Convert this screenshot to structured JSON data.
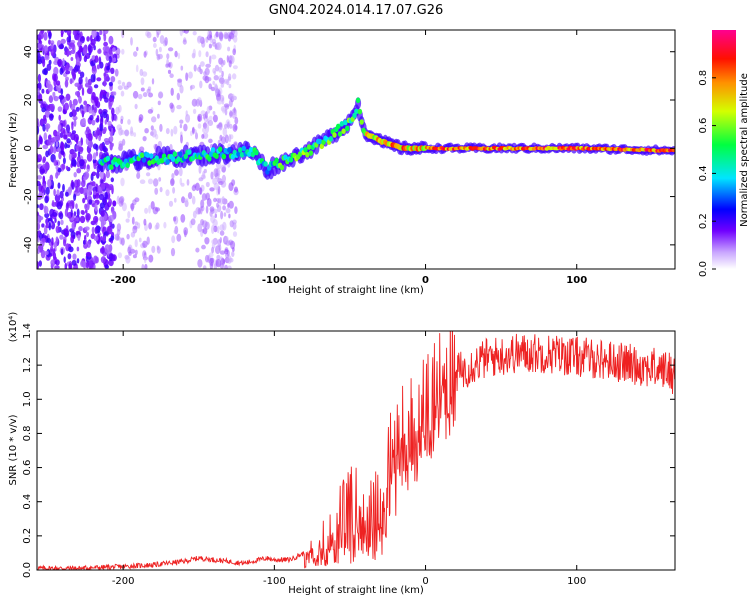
{
  "figure": {
    "title": "GN04.2024.014.17.07.G26"
  },
  "chart_data": [
    {
      "type": "heatmap",
      "xlabel": "Height of straight line (km)",
      "ylabel": "Frequency (Hz)",
      "xlim": [
        -257,
        165
      ],
      "ylim": [
        -50,
        49
      ],
      "x_ticks": [
        -200,
        -100,
        0,
        100
      ],
      "y_ticks": [
        -40,
        -20,
        0,
        20,
        40
      ],
      "colorbar": {
        "label": "Normalized spectral amplitude",
        "range": [
          0,
          1
        ],
        "ticks": [
          "0.0",
          "0.2",
          "0.4",
          "0.6",
          "0.8"
        ]
      },
      "ridge": {
        "x": [
          -210,
          -180,
          -150,
          -130,
          -115,
          -105,
          -95,
          -85,
          -75,
          -65,
          -58,
          -52,
          -47,
          -45,
          -40,
          -35,
          -30,
          -25,
          -20,
          -15,
          -10,
          0,
          50,
          100,
          165
        ],
        "y": [
          -6,
          -4,
          -3,
          -2,
          -1,
          -9,
          -6,
          -3,
          0,
          4,
          7,
          10,
          14,
          19,
          6,
          5,
          3,
          2,
          1,
          0,
          0,
          0,
          0,
          0,
          -1
        ]
      },
      "scatter_region_x": [
        -257,
        -125
      ]
    },
    {
      "type": "line",
      "xlabel": "Height of straight line (km)",
      "ylabel": "SNR (10 * v/v)",
      "y_multiplier": "(x10⁴)",
      "xlim": [
        -257,
        165
      ],
      "ylim": [
        0,
        1.4
      ],
      "x_ticks": [
        -200,
        -100,
        0,
        100
      ],
      "y_ticks": [
        "0.0",
        "0.2",
        "0.4",
        "0.6",
        "0.8",
        "1.0",
        "1.2",
        "1.4"
      ],
      "series": [
        {
          "color": "#ee2222",
          "x": [
            -257,
            -230,
            -200,
            -180,
            -160,
            -150,
            -140,
            -120,
            -105,
            -100,
            -90,
            -80,
            -70,
            -60,
            -50,
            -45,
            -40,
            -35,
            -30,
            -25,
            -20,
            -15,
            -10,
            -5,
            0,
            5,
            10,
            15,
            20,
            30,
            40,
            60,
            80,
            100,
            120,
            140,
            160,
            165
          ],
          "y": [
            0.01,
            0.01,
            0.02,
            0.03,
            0.05,
            0.07,
            0.06,
            0.04,
            0.07,
            0.06,
            0.06,
            0.1,
            0.16,
            0.24,
            0.32,
            0.35,
            0.33,
            0.28,
            0.38,
            0.55,
            0.65,
            0.8,
            0.82,
            0.85,
            0.95,
            1.02,
            1.1,
            1.12,
            1.15,
            1.2,
            1.24,
            1.27,
            1.27,
            1.25,
            1.23,
            1.2,
            1.17,
            1.14
          ]
        }
      ]
    }
  ]
}
